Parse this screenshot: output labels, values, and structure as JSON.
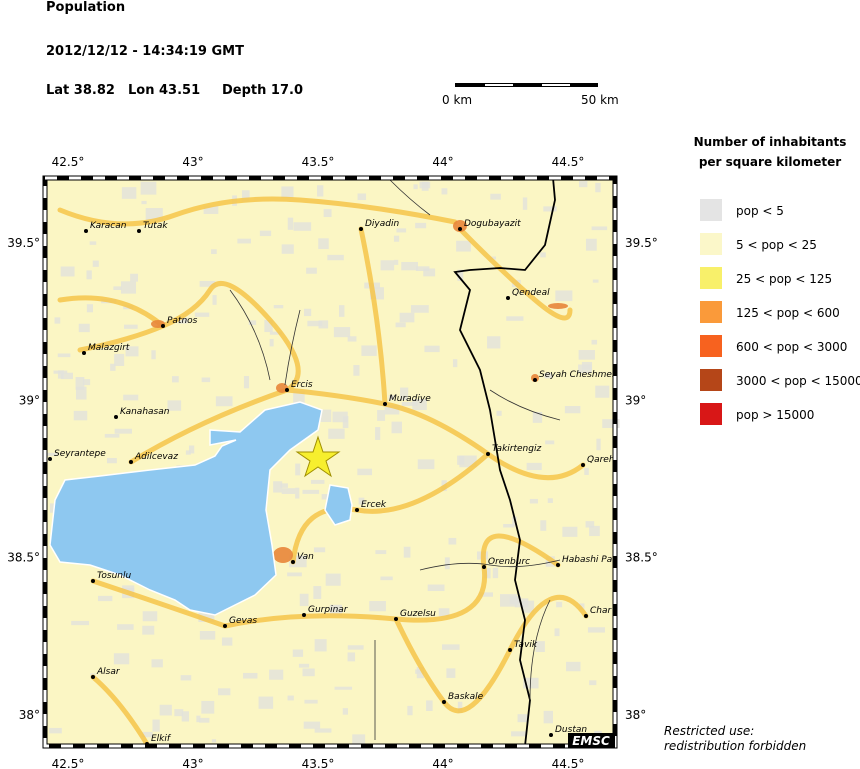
{
  "header": {
    "title": "Population",
    "datetime": "2012/12/12 - 14:34:19 GMT",
    "lat": "Lat 38.82",
    "lon": "Lon 43.51",
    "depth": "Depth 17.0"
  },
  "scale": {
    "start": "0 km",
    "end": "50 km"
  },
  "legend": {
    "title_lines": [
      "Number of inhabitants",
      "per square kilometer"
    ],
    "items": [
      {
        "label": "pop < 5",
        "color": "#e4e4e4"
      },
      {
        "label": "5 < pop < 25",
        "color": "#fbf7c9"
      },
      {
        "label": "25 < pop < 125",
        "color": "#f8f06a"
      },
      {
        "label": "125 < pop < 600",
        "color": "#fa9a3a"
      },
      {
        "label": "600 < pop < 3000",
        "color": "#f7621f"
      },
      {
        "label": "3000 < pop < 15000",
        "color": "#b54618"
      },
      {
        "label": "pop > 15000",
        "color": "#d81717"
      }
    ]
  },
  "map": {
    "lon_ticks": [
      "42.5°",
      "43°",
      "43.5°",
      "44°",
      "44.5°"
    ],
    "lat_ticks": [
      "39.5°",
      "39°",
      "38.5°",
      "38°"
    ],
    "cities": [
      "Karacan",
      "Tutak",
      "Diyadin",
      "Dogubayazit",
      "Qendeal",
      "Patnos",
      "Malazgirt",
      "Seyah Cheshmeh",
      "Ercis",
      "Muradiye",
      "Kanahasan",
      "Seyrantepe",
      "Adilcevaz",
      "Takirtengiz",
      "Qareh",
      "Ercek",
      "Van",
      "Orenburc",
      "Habashi Pa",
      "Tosunlu",
      "Gurpinar",
      "Guzelsu",
      "Gevas",
      "Char",
      "Tavik",
      "Alsar",
      "Baskale",
      "Dustan",
      "Elkif"
    ],
    "badge": "EMSC"
  },
  "notice": [
    "Restricted use:",
    "redistribution forbidden"
  ]
}
